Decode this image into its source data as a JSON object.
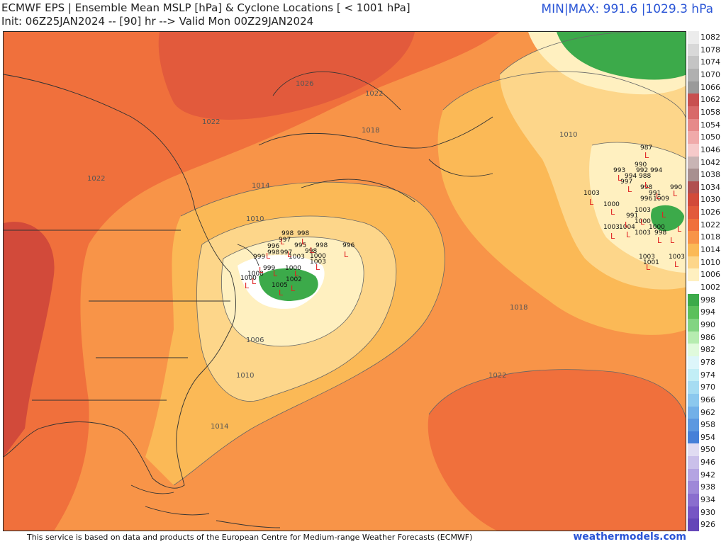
{
  "header": {
    "title": "ECMWF EPS | Ensemble Mean MSLP [hPa] & Cyclone Locations [ < 1001 hPa]",
    "subtitle": "Init: 06Z25JAN2024 -- [90] hr --> Valid Mon 00Z29JAN2024",
    "minmax": "MIN|MAX: 991.6 |1029.3 hPa"
  },
  "isobar_labels": [
    "1026",
    "1022",
    "1022",
    "1022",
    "1018",
    "1014",
    "1010",
    "1010",
    "1006",
    "1010",
    "1014",
    "1018",
    "1022",
    "1003",
    "1000",
    "996"
  ],
  "cyclones_west": [
    "998",
    "998",
    "997",
    "996",
    "999",
    "998",
    "997",
    "995",
    "999",
    "998",
    "1000",
    "1003",
    "1002",
    "1005",
    "1000",
    "1003",
    "996",
    "998",
    "1008",
    "1000"
  ],
  "cyclones_east": [
    "987",
    "990",
    "993",
    "992",
    "994",
    "997",
    "994",
    "988",
    "998",
    "991",
    "990",
    "1003",
    "1000",
    "996",
    "1009",
    "991",
    "1003",
    "1000",
    "1003",
    "1004",
    "1003",
    "1000",
    "998",
    "1003",
    "1001",
    "1003"
  ],
  "colorbar": {
    "labels": [
      "1082",
      "1078",
      "1074",
      "1070",
      "1066",
      "1062",
      "1058",
      "1054",
      "1050",
      "1046",
      "1042",
      "1038",
      "1034",
      "1030",
      "1026",
      "1022",
      "1018",
      "1014",
      "1010",
      "1006",
      "1002",
      "998",
      "994",
      "990",
      "986",
      "982",
      "978",
      "974",
      "970",
      "966",
      "962",
      "958",
      "954",
      "950",
      "946",
      "942",
      "938",
      "934",
      "930",
      "926"
    ],
    "colors": [
      "#ececec",
      "#d8d8d8",
      "#c4c4c4",
      "#b0b0b0",
      "#9a9a9a",
      "#c85050",
      "#d86a6a",
      "#e68a8a",
      "#f0aaaa",
      "#f6caca",
      "#c8b4b4",
      "#a89090",
      "#b05050",
      "#d24a3a",
      "#e25a3c",
      "#f0703c",
      "#f89448",
      "#fbb956",
      "#fdd68a",
      "#fff0c0",
      "#ffffff",
      "#3caa4a",
      "#5cc05c",
      "#82d482",
      "#b6ecb0",
      "#e0fadc",
      "#ddf6fa",
      "#c2eef6",
      "#a6dcf2",
      "#8cc8ee",
      "#72b0e8",
      "#5c98e0",
      "#4680d8",
      "#e0dcf2",
      "#cac0ea",
      "#b4a4e2",
      "#9e88d8",
      "#8a6ece",
      "#7656c4",
      "#6446b8"
    ]
  },
  "footer": {
    "credit": "This service is based on data and products of the European Centre for Medium-range Weather Forecasts (ECMWF)",
    "brand": "weathermodels.com"
  }
}
